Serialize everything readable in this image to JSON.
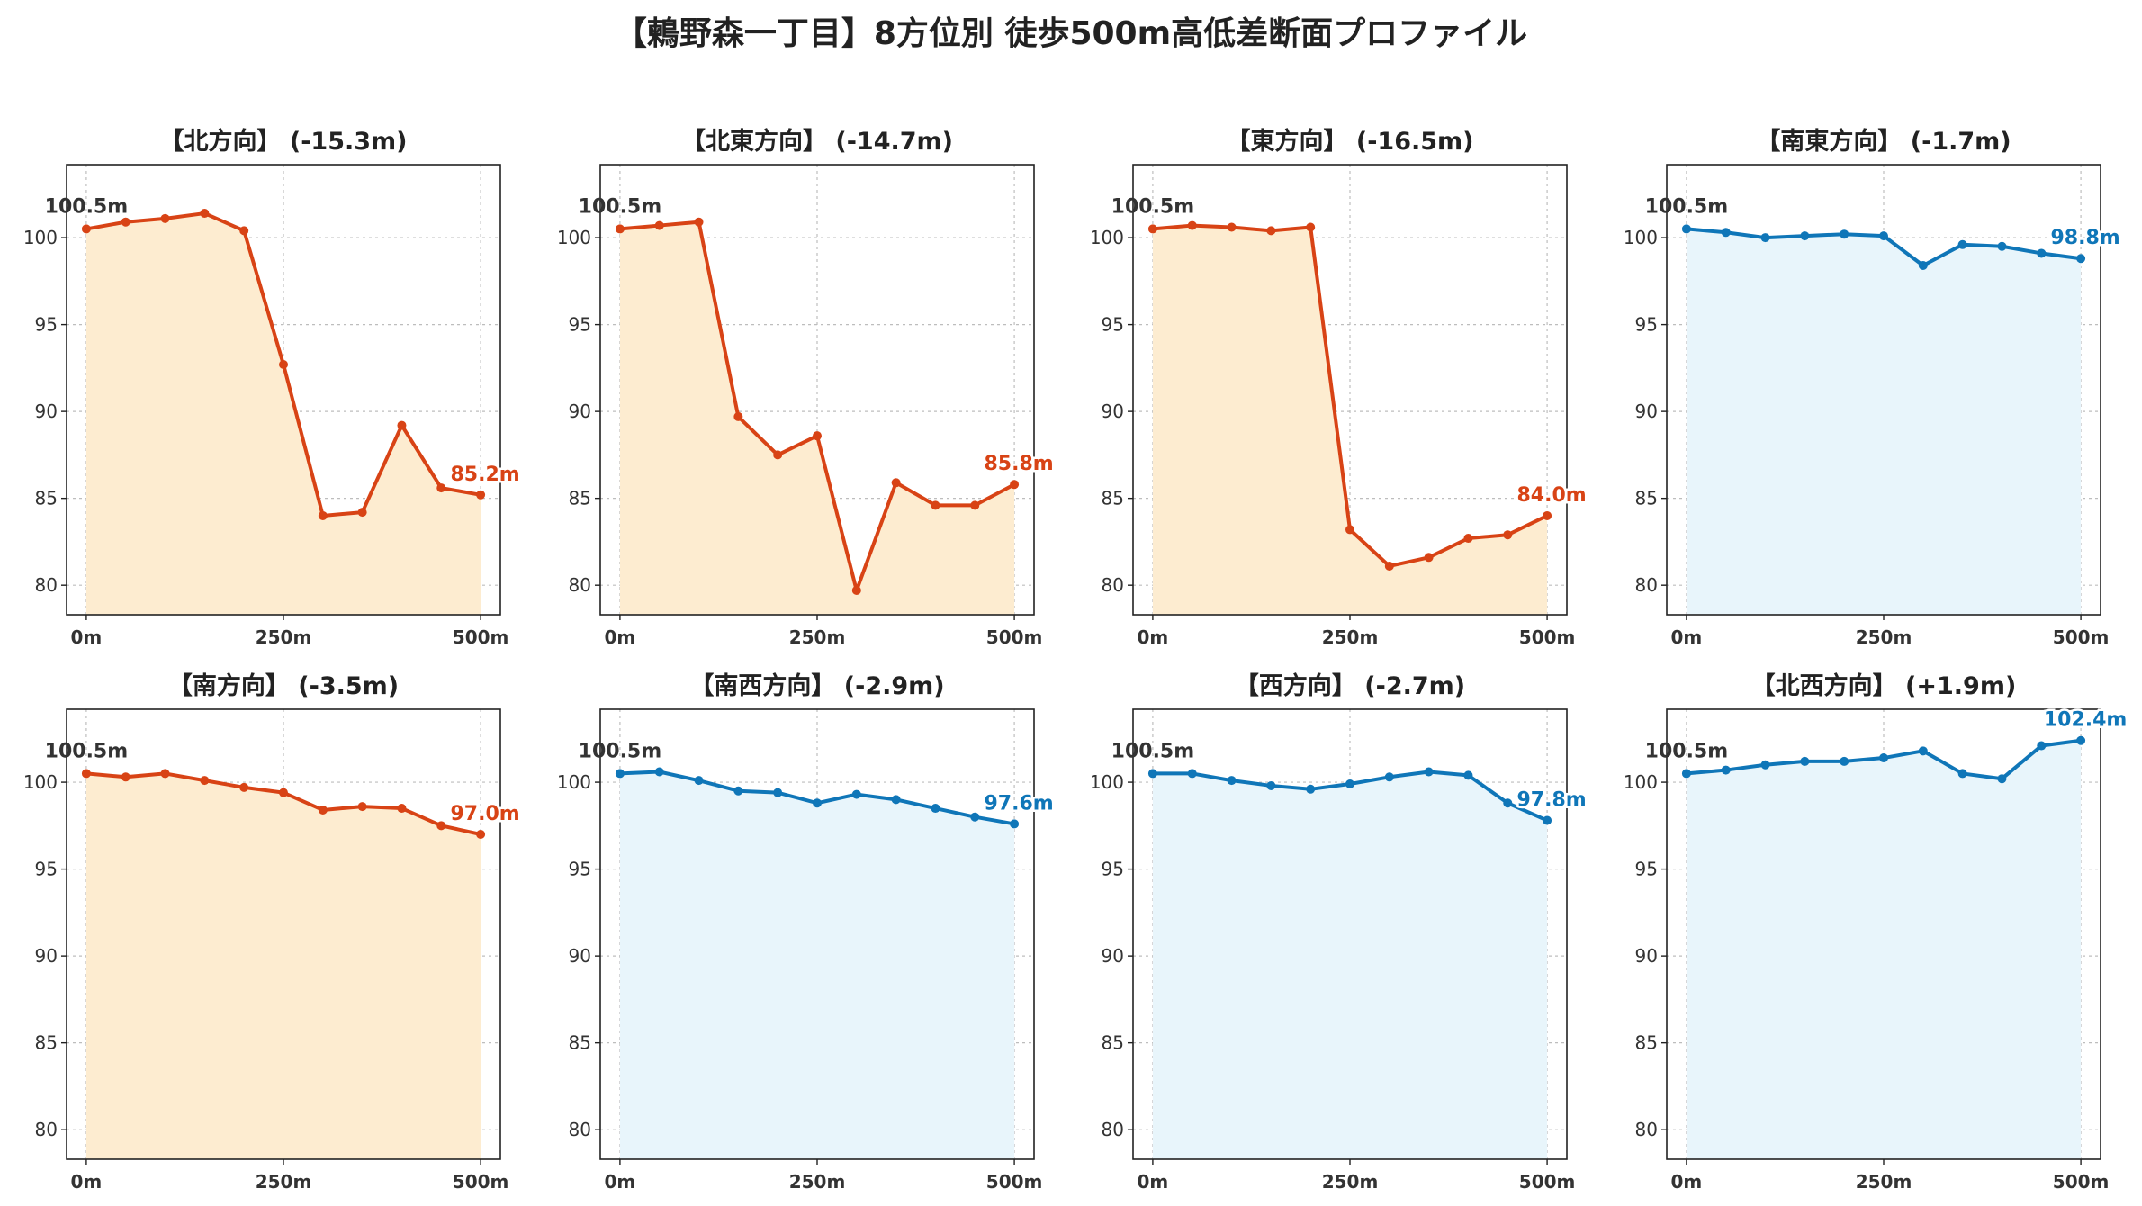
{
  "title": "【鶫野森一丁目】8方位別 徒歩500m高低差断面プロファイル",
  "colors": {
    "down_line": "#d84315",
    "down_fill": "#fdecd0",
    "up_line": "#0f76b8",
    "up_fill": "#e8f5fb",
    "grid": "#bdbdbd",
    "start_label": "#333333"
  },
  "chart_data": [
    {
      "type": "area",
      "title": "【北方向】 (-15.3m)",
      "trend": "down",
      "x": [
        0,
        50,
        100,
        150,
        200,
        250,
        300,
        350,
        400,
        450,
        500
      ],
      "y": [
        100.5,
        100.9,
        101.1,
        101.4,
        100.4,
        92.7,
        84.0,
        84.2,
        89.2,
        85.6,
        85.2
      ],
      "start_label": "100.5m",
      "end_label": "85.2m",
      "x_ticks": [
        "0m",
        "250m",
        "500m"
      ],
      "y_ticks": [
        80,
        85,
        90,
        95,
        100
      ],
      "ylim": [
        78.3,
        104.2
      ],
      "xlim": [
        -25,
        525
      ],
      "grid": true
    },
    {
      "type": "area",
      "title": "【北東方向】 (-14.7m)",
      "trend": "down",
      "x": [
        0,
        50,
        100,
        150,
        200,
        250,
        300,
        350,
        400,
        450,
        500
      ],
      "y": [
        100.5,
        100.7,
        100.9,
        89.7,
        87.5,
        88.6,
        79.7,
        85.9,
        84.6,
        84.6,
        85.8
      ],
      "start_label": "100.5m",
      "end_label": "85.8m",
      "x_ticks": [
        "0m",
        "250m",
        "500m"
      ],
      "y_ticks": [
        80,
        85,
        90,
        95,
        100
      ],
      "ylim": [
        78.3,
        104.2
      ],
      "xlim": [
        -25,
        525
      ],
      "grid": true
    },
    {
      "type": "area",
      "title": "【東方向】 (-16.5m)",
      "trend": "down",
      "x": [
        0,
        50,
        100,
        150,
        200,
        250,
        300,
        350,
        400,
        450,
        500
      ],
      "y": [
        100.5,
        100.7,
        100.6,
        100.4,
        100.6,
        83.2,
        81.1,
        81.6,
        82.7,
        82.9,
        84.0
      ],
      "start_label": "100.5m",
      "end_label": "84.0m",
      "x_ticks": [
        "0m",
        "250m",
        "500m"
      ],
      "y_ticks": [
        80,
        85,
        90,
        95,
        100
      ],
      "ylim": [
        78.3,
        104.2
      ],
      "xlim": [
        -25,
        525
      ],
      "grid": true
    },
    {
      "type": "area",
      "title": "【南東方向】 (-1.7m)",
      "trend": "up",
      "x": [
        0,
        50,
        100,
        150,
        200,
        250,
        300,
        350,
        400,
        450,
        500
      ],
      "y": [
        100.5,
        100.3,
        100.0,
        100.1,
        100.2,
        100.1,
        98.4,
        99.6,
        99.5,
        99.1,
        98.8
      ],
      "start_label": "100.5m",
      "end_label": "98.8m",
      "x_ticks": [
        "0m",
        "250m",
        "500m"
      ],
      "y_ticks": [
        80,
        85,
        90,
        95,
        100
      ],
      "ylim": [
        78.3,
        104.2
      ],
      "xlim": [
        -25,
        525
      ],
      "grid": true
    },
    {
      "type": "area",
      "title": "【南方向】 (-3.5m)",
      "trend": "down",
      "x": [
        0,
        50,
        100,
        150,
        200,
        250,
        300,
        350,
        400,
        450,
        500
      ],
      "y": [
        100.5,
        100.3,
        100.5,
        100.1,
        99.7,
        99.4,
        98.4,
        98.6,
        98.5,
        97.5,
        97.0
      ],
      "start_label": "100.5m",
      "end_label": "97.0m",
      "x_ticks": [
        "0m",
        "250m",
        "500m"
      ],
      "y_ticks": [
        80,
        85,
        90,
        95,
        100
      ],
      "ylim": [
        78.3,
        104.2
      ],
      "xlim": [
        -25,
        525
      ],
      "grid": true
    },
    {
      "type": "area",
      "title": "【南西方向】 (-2.9m)",
      "trend": "up",
      "x": [
        0,
        50,
        100,
        150,
        200,
        250,
        300,
        350,
        400,
        450,
        500
      ],
      "y": [
        100.5,
        100.6,
        100.1,
        99.5,
        99.4,
        98.8,
        99.3,
        99.0,
        98.5,
        98.0,
        97.6
      ],
      "start_label": "100.5m",
      "end_label": "97.6m",
      "x_ticks": [
        "0m",
        "250m",
        "500m"
      ],
      "y_ticks": [
        80,
        85,
        90,
        95,
        100
      ],
      "ylim": [
        78.3,
        104.2
      ],
      "xlim": [
        -25,
        525
      ],
      "grid": true
    },
    {
      "type": "area",
      "title": "【西方向】 (-2.7m)",
      "trend": "up",
      "x": [
        0,
        50,
        100,
        150,
        200,
        250,
        300,
        350,
        400,
        450,
        500
      ],
      "y": [
        100.5,
        100.5,
        100.1,
        99.8,
        99.6,
        99.9,
        100.3,
        100.6,
        100.4,
        98.8,
        97.8
      ],
      "start_label": "100.5m",
      "end_label": "97.8m",
      "x_ticks": [
        "0m",
        "250m",
        "500m"
      ],
      "y_ticks": [
        80,
        85,
        90,
        95,
        100
      ],
      "ylim": [
        78.3,
        104.2
      ],
      "xlim": [
        -25,
        525
      ],
      "grid": true
    },
    {
      "type": "area",
      "title": "【北西方向】 (+1.9m)",
      "trend": "up",
      "x": [
        0,
        50,
        100,
        150,
        200,
        250,
        300,
        350,
        400,
        450,
        500
      ],
      "y": [
        100.5,
        100.7,
        101.0,
        101.2,
        101.2,
        101.4,
        101.8,
        100.5,
        100.2,
        102.1,
        102.4
      ],
      "start_label": "100.5m",
      "end_label": "102.4m",
      "x_ticks": [
        "0m",
        "250m",
        "500m"
      ],
      "y_ticks": [
        80,
        85,
        90,
        95,
        100
      ],
      "ylim": [
        78.3,
        104.2
      ],
      "xlim": [
        -25,
        525
      ],
      "grid": true
    }
  ]
}
